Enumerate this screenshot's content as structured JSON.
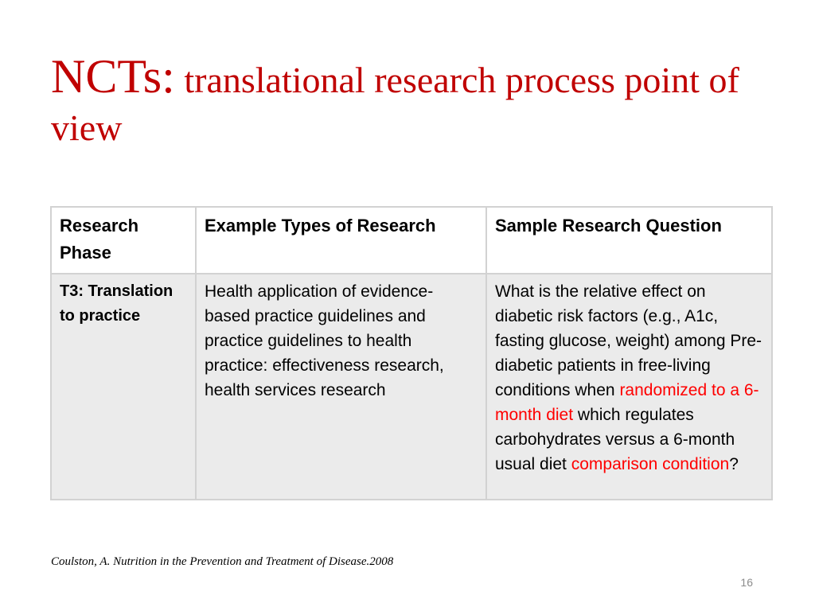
{
  "slide": {
    "title_lead": "NCTs:",
    "title_rest": " translational research process point of view",
    "table": {
      "headers": [
        "Research Phase",
        "Example Types of Research",
        "Sample Research Question"
      ],
      "row": {
        "phase": "T3: Translation to practice",
        "types": "Health application of evidence-based practice guidelines and practice guidelines to health practice: effectiveness research, health services research",
        "question_part1": "What is the relative effect on diabetic risk factors (e.g., A1c, fasting glucose, weight) among Pre-diabetic patients in free-living conditions when ",
        "question_highlight1": "randomized to a 6-month diet",
        "question_part2": " which regulates carbohydrates versus a 6-month usual diet ",
        "question_highlight2": "comparison condition",
        "question_end": "?"
      }
    },
    "citation": "Coulston, A. Nutrition in the Prevention and Treatment of Disease.2008",
    "slide_number": "16",
    "colors": {
      "title": "#c00000",
      "highlight": "#ff0000",
      "table_body": "#ebebeb"
    }
  }
}
